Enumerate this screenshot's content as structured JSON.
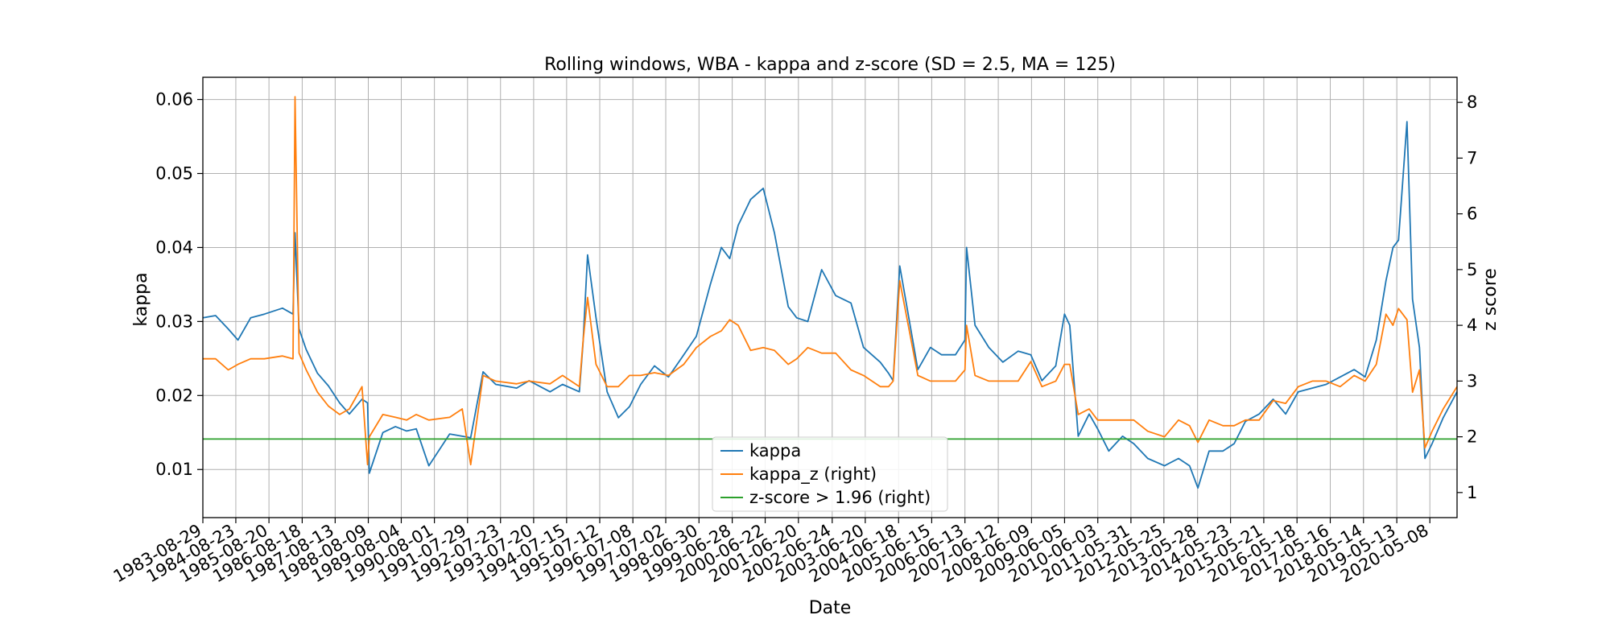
{
  "chart_data": {
    "type": "line",
    "title": "Rolling windows, WBA - kappa and z-score (SD = 2.5, MA = 125)",
    "xlabel": "Date",
    "ylabel": "kappa",
    "y2label": "z score",
    "xlim": [
      "1983-08-29",
      "2021-03-01"
    ],
    "ylim": [
      0.0035,
      0.063
    ],
    "y2lim": [
      0.55,
      8.45
    ],
    "grid": true,
    "legend_position": "bottom-center",
    "x_ticks": [
      "1983-08-29",
      "1984-08-23",
      "1985-08-20",
      "1986-08-18",
      "1987-08-13",
      "1988-08-09",
      "1989-08-04",
      "1990-08-01",
      "1991-07-29",
      "1992-07-23",
      "1993-07-20",
      "1994-07-15",
      "1995-07-12",
      "1996-07-08",
      "1997-07-02",
      "1998-06-30",
      "1999-06-28",
      "2000-06-22",
      "2001-06-20",
      "2002-06-24",
      "2003-06-20",
      "2004-06-18",
      "2005-06-15",
      "2006-06-13",
      "2007-06-12",
      "2008-06-09",
      "2009-06-05",
      "2010-06-03",
      "2011-05-31",
      "2012-05-25",
      "2013-05-28",
      "2014-05-23",
      "2015-05-21",
      "2016-05-18",
      "2017-05-16",
      "2018-05-14",
      "2019-05-13",
      "2020-05-08"
    ],
    "y_ticks": [
      "0.01",
      "0.02",
      "0.03",
      "0.04",
      "0.05",
      "0.06"
    ],
    "y2_ticks": [
      "1",
      "2",
      "3",
      "4",
      "5",
      "6",
      "7",
      "8"
    ],
    "series": [
      {
        "name": "kappa",
        "axis": "left",
        "color": "#1f77b4",
        "x": [
          "1983-08-29",
          "1984-01-15",
          "1984-06-01",
          "1984-09-15",
          "1985-02-01",
          "1985-07-01",
          "1986-01-15",
          "1986-05-10",
          "1986-06-01",
          "1986-07-15",
          "1986-10-01",
          "1987-02-01",
          "1987-06-01",
          "1987-10-01",
          "1988-01-15",
          "1988-06-01",
          "1988-08-01",
          "1988-08-20",
          "1989-01-15",
          "1989-06-01",
          "1989-10-01",
          "1990-01-15",
          "1990-06-01",
          "1991-01-15",
          "1991-06-01",
          "1991-09-01",
          "1992-01-15",
          "1992-06-01",
          "1993-01-15",
          "1993-06-01",
          "1994-01-15",
          "1994-06-01",
          "1994-12-01",
          "1995-01-10",
          "1995-03-01",
          "1995-06-01",
          "1995-10-01",
          "1996-02-01",
          "1996-06-01",
          "1996-10-01",
          "1997-03-01",
          "1997-08-01",
          "1998-01-15",
          "1998-06-01",
          "1998-11-01",
          "1999-03-01",
          "1999-06-01",
          "1999-09-01",
          "2000-01-15",
          "2000-06-01",
          "2000-10-01",
          "2001-03-01",
          "2001-06-01",
          "2001-10-01",
          "2002-03-01",
          "2002-08-01",
          "2003-01-15",
          "2003-06-01",
          "2003-12-01",
          "2004-03-01",
          "2004-04-20",
          "2004-07-01",
          "2005-01-15",
          "2005-06-01",
          "2005-10-01",
          "2006-03-01",
          "2006-06-13",
          "2006-07-01",
          "2006-10-01",
          "2007-03-01",
          "2007-08-01",
          "2008-01-15",
          "2008-06-01",
          "2008-10-01",
          "2009-03-01",
          "2009-06-05",
          "2009-08-01",
          "2009-11-01",
          "2010-03-01",
          "2010-06-01",
          "2010-10-01",
          "2011-03-01",
          "2011-07-01",
          "2011-12-01",
          "2012-06-01",
          "2012-11-01",
          "2013-03-01",
          "2013-06-01",
          "2013-10-01",
          "2014-03-01",
          "2014-07-01",
          "2014-11-01",
          "2015-04-01",
          "2015-09-01",
          "2016-01-15",
          "2016-06-01",
          "2016-11-01",
          "2017-04-01",
          "2017-09-01",
          "2018-02-01",
          "2018-06-01",
          "2018-10-01",
          "2019-01-15",
          "2019-04-01",
          "2019-06-01",
          "2019-09-01",
          "2019-11-01",
          "2020-01-15",
          "2020-03-15",
          "2020-06-01",
          "2020-10-01",
          "2021-03-01"
        ],
        "values": [
          0.0305,
          0.0308,
          0.029,
          0.0275,
          0.0305,
          0.031,
          0.0318,
          0.031,
          0.042,
          0.029,
          0.0262,
          0.023,
          0.0213,
          0.019,
          0.0175,
          0.0195,
          0.019,
          0.0095,
          0.015,
          0.0158,
          0.0152,
          0.0155,
          0.0105,
          0.0148,
          0.0145,
          0.0143,
          0.0232,
          0.0215,
          0.021,
          0.022,
          0.0205,
          0.0215,
          0.0205,
          0.027,
          0.039,
          0.0305,
          0.0205,
          0.017,
          0.0185,
          0.0215,
          0.024,
          0.0225,
          0.0255,
          0.028,
          0.035,
          0.04,
          0.0385,
          0.043,
          0.0465,
          0.048,
          0.042,
          0.032,
          0.0305,
          0.03,
          0.037,
          0.0335,
          0.0325,
          0.0265,
          0.0245,
          0.023,
          0.022,
          0.0375,
          0.0235,
          0.0265,
          0.0255,
          0.0255,
          0.0275,
          0.04,
          0.0295,
          0.0265,
          0.0245,
          0.026,
          0.0255,
          0.022,
          0.024,
          0.031,
          0.0295,
          0.0145,
          0.0175,
          0.0155,
          0.0125,
          0.0145,
          0.0135,
          0.0115,
          0.0105,
          0.0115,
          0.0105,
          0.0075,
          0.0125,
          0.0125,
          0.0135,
          0.0165,
          0.0175,
          0.0195,
          0.0175,
          0.0205,
          0.021,
          0.0215,
          0.0225,
          0.0235,
          0.0225,
          0.0275,
          0.0355,
          0.04,
          0.041,
          0.057,
          0.033,
          0.0265,
          0.0115,
          0.0135,
          0.017,
          0.0205
        ]
      },
      {
        "name": "kappa_z (right)",
        "axis": "right",
        "color": "#ff7f0e",
        "x": [
          "1983-08-29",
          "1984-01-15",
          "1984-06-01",
          "1984-09-15",
          "1985-02-01",
          "1985-07-01",
          "1986-01-15",
          "1986-05-10",
          "1986-06-01",
          "1986-07-15",
          "1986-10-01",
          "1987-02-01",
          "1987-06-01",
          "1987-10-01",
          "1988-01-15",
          "1988-06-01",
          "1988-08-01",
          "1988-08-20",
          "1989-01-15",
          "1989-06-01",
          "1989-10-01",
          "1990-01-15",
          "1990-06-01",
          "1991-01-15",
          "1991-06-01",
          "1991-09-01",
          "1992-01-15",
          "1992-06-01",
          "1993-01-15",
          "1993-06-01",
          "1994-01-15",
          "1994-06-01",
          "1994-12-01",
          "1995-01-10",
          "1995-03-01",
          "1995-06-01",
          "1995-10-01",
          "1996-02-01",
          "1996-06-01",
          "1996-10-01",
          "1997-03-01",
          "1997-08-01",
          "1998-01-15",
          "1998-06-01",
          "1998-11-01",
          "1999-03-01",
          "1999-06-01",
          "1999-09-01",
          "2000-01-15",
          "2000-06-01",
          "2000-10-01",
          "2001-03-01",
          "2001-06-01",
          "2001-10-01",
          "2002-03-01",
          "2002-08-01",
          "2003-01-15",
          "2003-06-01",
          "2003-12-01",
          "2004-03-01",
          "2004-04-20",
          "2004-07-01",
          "2005-01-15",
          "2005-06-01",
          "2005-10-01",
          "2006-03-01",
          "2006-06-13",
          "2006-07-01",
          "2006-10-01",
          "2007-03-01",
          "2007-08-01",
          "2008-01-15",
          "2008-06-01",
          "2008-10-01",
          "2009-03-01",
          "2009-06-05",
          "2009-08-01",
          "2009-11-01",
          "2010-03-01",
          "2010-06-01",
          "2010-10-01",
          "2011-03-01",
          "2011-07-01",
          "2011-12-01",
          "2012-06-01",
          "2012-11-01",
          "2013-03-01",
          "2013-06-01",
          "2013-10-01",
          "2014-03-01",
          "2014-07-01",
          "2014-11-01",
          "2015-04-01",
          "2015-09-01",
          "2016-01-15",
          "2016-06-01",
          "2016-11-01",
          "2017-04-01",
          "2017-09-01",
          "2018-02-01",
          "2018-06-01",
          "2018-10-01",
          "2019-01-15",
          "2019-04-01",
          "2019-06-01",
          "2019-09-01",
          "2019-11-01",
          "2020-01-15",
          "2020-03-15",
          "2020-06-01",
          "2020-10-01",
          "2021-03-01"
        ],
        "values": [
          3.4,
          3.4,
          3.2,
          3.3,
          3.4,
          3.4,
          3.45,
          3.4,
          8.1,
          3.5,
          3.2,
          2.8,
          2.55,
          2.4,
          2.5,
          2.9,
          1.5,
          2.0,
          2.4,
          2.35,
          2.3,
          2.4,
          2.3,
          2.35,
          2.5,
          1.5,
          3.1,
          3.0,
          2.95,
          3.0,
          2.95,
          3.1,
          2.9,
          3.7,
          4.5,
          3.3,
          2.9,
          2.9,
          3.1,
          3.1,
          3.15,
          3.1,
          3.3,
          3.6,
          3.8,
          3.9,
          4.1,
          4.0,
          3.55,
          3.6,
          3.55,
          3.3,
          3.4,
          3.6,
          3.5,
          3.5,
          3.2,
          3.1,
          2.9,
          2.9,
          3.0,
          4.8,
          3.1,
          3.0,
          3.0,
          3.0,
          3.2,
          4.0,
          3.1,
          3.0,
          3.0,
          3.0,
          3.35,
          2.9,
          3.0,
          3.3,
          3.3,
          2.4,
          2.5,
          2.3,
          2.3,
          2.3,
          2.3,
          2.1,
          2.0,
          2.3,
          2.2,
          1.9,
          2.3,
          2.2,
          2.2,
          2.3,
          2.3,
          2.65,
          2.6,
          2.9,
          3.0,
          3.0,
          2.9,
          3.1,
          3.0,
          3.3,
          4.2,
          4.0,
          4.3,
          4.1,
          2.8,
          3.2,
          1.8,
          2.1,
          2.5,
          2.9
        ]
      },
      {
        "name": "z-score > 1.96 (right)",
        "axis": "right",
        "color": "#2ca02c",
        "x": [
          "1983-08-29",
          "2021-03-01"
        ],
        "values": [
          1.96,
          1.96
        ]
      }
    ]
  }
}
